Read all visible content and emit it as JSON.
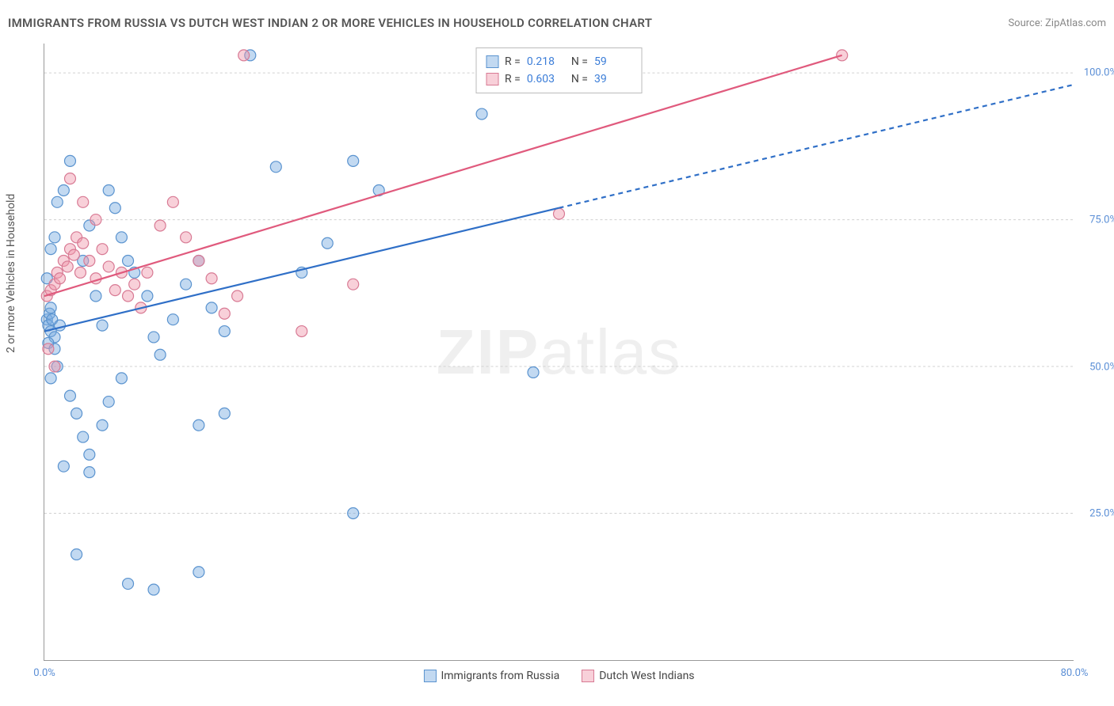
{
  "title": "IMMIGRANTS FROM RUSSIA VS DUTCH WEST INDIAN 2 OR MORE VEHICLES IN HOUSEHOLD CORRELATION CHART",
  "source_label": "Source:",
  "source_name": "ZipAtlas.com",
  "y_axis_label": "2 or more Vehicles in Household",
  "watermark_text": "ZIPatlas",
  "chart": {
    "type": "scatter-correlation",
    "background_color": "#ffffff",
    "grid_color": "#d0d0d0",
    "axis_color": "#999999",
    "xlim": [
      0,
      80
    ],
    "ylim": [
      0,
      105
    ],
    "y_ticks": [
      25,
      50,
      75,
      100
    ],
    "y_tick_labels": [
      "25.0%",
      "50.0%",
      "75.0%",
      "100.0%"
    ],
    "x_ticks": [
      0,
      80
    ],
    "x_tick_labels": [
      "0.0%",
      "80.0%"
    ],
    "tick_label_color": "#5b8fd6",
    "tick_fontsize": 13,
    "title_fontsize": 15,
    "marker_radius": 7,
    "marker_stroke_width": 1.2,
    "line_width": 2.2,
    "series": [
      {
        "name": "Immigrants from Russia",
        "color_fill": "rgba(120,170,225,0.45)",
        "color_stroke": "#5a93cf",
        "line_color": "#2f6fc7",
        "r_value": "0.218",
        "n_value": "59",
        "trend_solid": {
          "x1": 0,
          "y1": 56,
          "x2": 40,
          "y2": 77
        },
        "trend_dashed": {
          "x1": 40,
          "y1": 77,
          "x2": 80,
          "y2": 98
        },
        "points": [
          [
            0.2,
            58
          ],
          [
            0.3,
            57
          ],
          [
            0.4,
            59
          ],
          [
            0.5,
            60
          ],
          [
            0.6,
            58
          ],
          [
            0.5,
            56
          ],
          [
            0.8,
            55
          ],
          [
            0.3,
            54
          ],
          [
            0.5,
            48
          ],
          [
            1.0,
            50
          ],
          [
            0.8,
            53
          ],
          [
            1.2,
            57
          ],
          [
            0.2,
            65
          ],
          [
            0.5,
            70
          ],
          [
            0.8,
            72
          ],
          [
            1.0,
            78
          ],
          [
            1.5,
            80
          ],
          [
            2.0,
            85
          ],
          [
            3.0,
            68
          ],
          [
            3.5,
            74
          ],
          [
            4.0,
            62
          ],
          [
            4.5,
            57
          ],
          [
            5.0,
            80
          ],
          [
            5.5,
            77
          ],
          [
            6.0,
            72
          ],
          [
            6.5,
            68
          ],
          [
            7.0,
            66
          ],
          [
            8.0,
            62
          ],
          [
            8.5,
            55
          ],
          [
            9.0,
            52
          ],
          [
            10.0,
            58
          ],
          [
            11.0,
            64
          ],
          [
            12.0,
            68
          ],
          [
            13.0,
            60
          ],
          [
            14.0,
            56
          ],
          [
            16.0,
            103
          ],
          [
            18.0,
            84
          ],
          [
            20.0,
            66
          ],
          [
            22.0,
            71
          ],
          [
            24.0,
            85
          ],
          [
            26.0,
            80
          ],
          [
            2.0,
            45
          ],
          [
            2.5,
            42
          ],
          [
            3.0,
            38
          ],
          [
            3.5,
            35
          ],
          [
            4.5,
            40
          ],
          [
            5.0,
            44
          ],
          [
            6.0,
            48
          ],
          [
            1.5,
            33
          ],
          [
            3.5,
            32
          ],
          [
            2.5,
            18
          ],
          [
            6.5,
            13
          ],
          [
            8.5,
            12
          ],
          [
            12.0,
            15
          ],
          [
            24.0,
            25
          ],
          [
            34.0,
            93
          ],
          [
            38.0,
            49
          ],
          [
            12.0,
            40
          ],
          [
            14.0,
            42
          ]
        ]
      },
      {
        "name": "Dutch West Indians",
        "color_fill": "rgba(240,150,170,0.45)",
        "color_stroke": "#d87a94",
        "line_color": "#e05a7d",
        "r_value": "0.603",
        "n_value": "39",
        "trend_solid": {
          "x1": 0,
          "y1": 62,
          "x2": 62,
          "y2": 103
        },
        "trend_dashed": null,
        "points": [
          [
            0.2,
            62
          ],
          [
            0.5,
            63
          ],
          [
            0.8,
            64
          ],
          [
            1.0,
            66
          ],
          [
            1.2,
            65
          ],
          [
            1.5,
            68
          ],
          [
            1.8,
            67
          ],
          [
            2.0,
            70
          ],
          [
            2.3,
            69
          ],
          [
            2.5,
            72
          ],
          [
            2.8,
            66
          ],
          [
            3.0,
            71
          ],
          [
            3.5,
            68
          ],
          [
            4.0,
            65
          ],
          [
            4.5,
            70
          ],
          [
            5.0,
            67
          ],
          [
            5.5,
            63
          ],
          [
            6.0,
            66
          ],
          [
            6.5,
            62
          ],
          [
            7.0,
            64
          ],
          [
            7.5,
            60
          ],
          [
            8.0,
            66
          ],
          [
            9.0,
            74
          ],
          [
            10.0,
            78
          ],
          [
            11.0,
            72
          ],
          [
            12.0,
            68
          ],
          [
            13.0,
            65
          ],
          [
            14.0,
            59
          ],
          [
            15.0,
            62
          ],
          [
            2.0,
            82
          ],
          [
            3.0,
            78
          ],
          [
            4.0,
            75
          ],
          [
            0.3,
            53
          ],
          [
            0.8,
            50
          ],
          [
            15.5,
            103
          ],
          [
            20.0,
            56
          ],
          [
            24.0,
            64
          ],
          [
            40.0,
            76
          ],
          [
            62.0,
            103
          ]
        ]
      }
    ],
    "legend_stats": {
      "r_label": "R  =",
      "n_label": "N  ="
    }
  }
}
